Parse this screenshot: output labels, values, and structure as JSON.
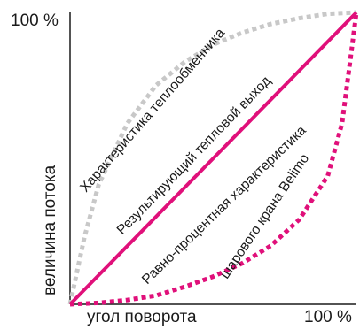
{
  "chart_data": {
    "type": "line",
    "xlabel": "угол поворота",
    "ylabel": "величина потока",
    "x_tick_label": "100 %",
    "y_tick_label": "100 %",
    "xlim": [
      0,
      100
    ],
    "ylim": [
      0,
      100
    ],
    "grid": false,
    "legend": "none",
    "series": [
      {
        "name": "Характеристика теплообменника",
        "color": "#c8c8c8",
        "line_style": "dotted",
        "x": [
          0,
          5,
          10,
          20,
          30,
          40,
          50,
          60,
          70,
          80,
          90,
          100
        ],
        "y": [
          0,
          23,
          41,
          62,
          75,
          83,
          89,
          93,
          96,
          98,
          99.5,
          100
        ]
      },
      {
        "name": "Результирующий тепловой выход",
        "color": "#e0107a",
        "line_style": "solid",
        "x": [
          0,
          100
        ],
        "y": [
          0,
          100
        ]
      },
      {
        "name": "Равно-процентная характеристика шарового крана Belimo",
        "color": "#e0107a",
        "line_style": "dotted",
        "x": [
          0,
          10,
          20,
          30,
          40,
          50,
          60,
          70,
          80,
          90,
          95,
          100
        ],
        "y": [
          0,
          0.5,
          1.5,
          3,
          6,
          9.5,
          14,
          20,
          29,
          44,
          62,
          100
        ]
      }
    ]
  }
}
